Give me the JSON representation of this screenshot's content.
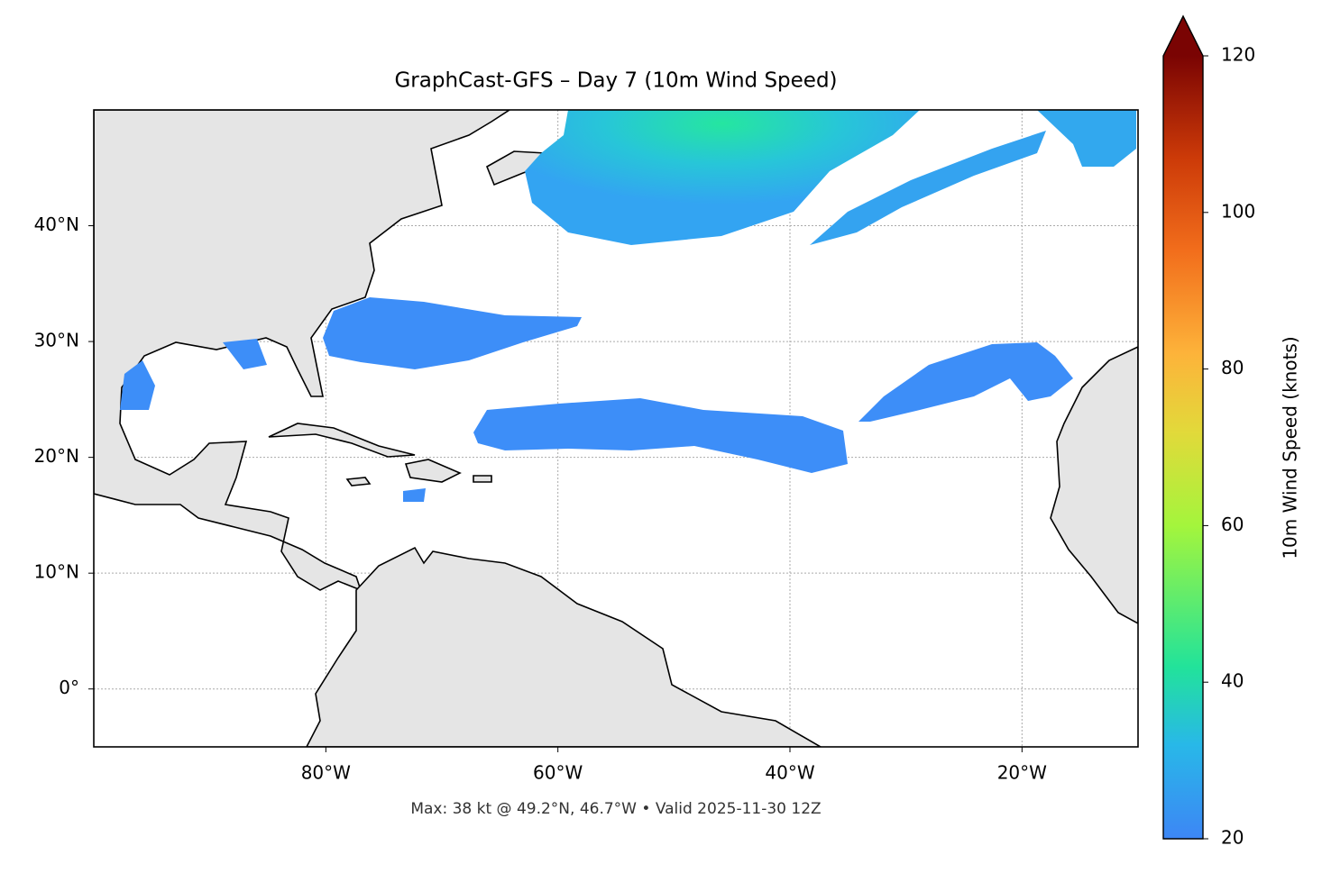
{
  "chart_data": {
    "type": "map",
    "title": "GraphCast-GFS – Day 7 (10m Wind Speed)",
    "footer": "Max: 38 kt @ 49.2°N, 46.7°W • Valid 2025-11-30 12Z",
    "xlim": [
      -100,
      -10
    ],
    "ylim": [
      -5,
      50
    ],
    "xticks": [
      {
        "value": -80,
        "label": "80°W"
      },
      {
        "value": -60,
        "label": "60°W"
      },
      {
        "value": -40,
        "label": "40°W"
      },
      {
        "value": -20,
        "label": "20°W"
      }
    ],
    "yticks": [
      {
        "value": 0,
        "label": "0°"
      },
      {
        "value": 10,
        "label": "10°N"
      },
      {
        "value": 20,
        "label": "20°N"
      },
      {
        "value": 30,
        "label": "30°N"
      },
      {
        "value": 40,
        "label": "40°N"
      }
    ],
    "grid": true,
    "colorbar": {
      "label": "10m Wind Speed (knots)",
      "lim": [
        20,
        120
      ],
      "ticks": [
        20,
        40,
        60,
        80,
        100,
        120
      ],
      "extend": "max"
    }
  }
}
